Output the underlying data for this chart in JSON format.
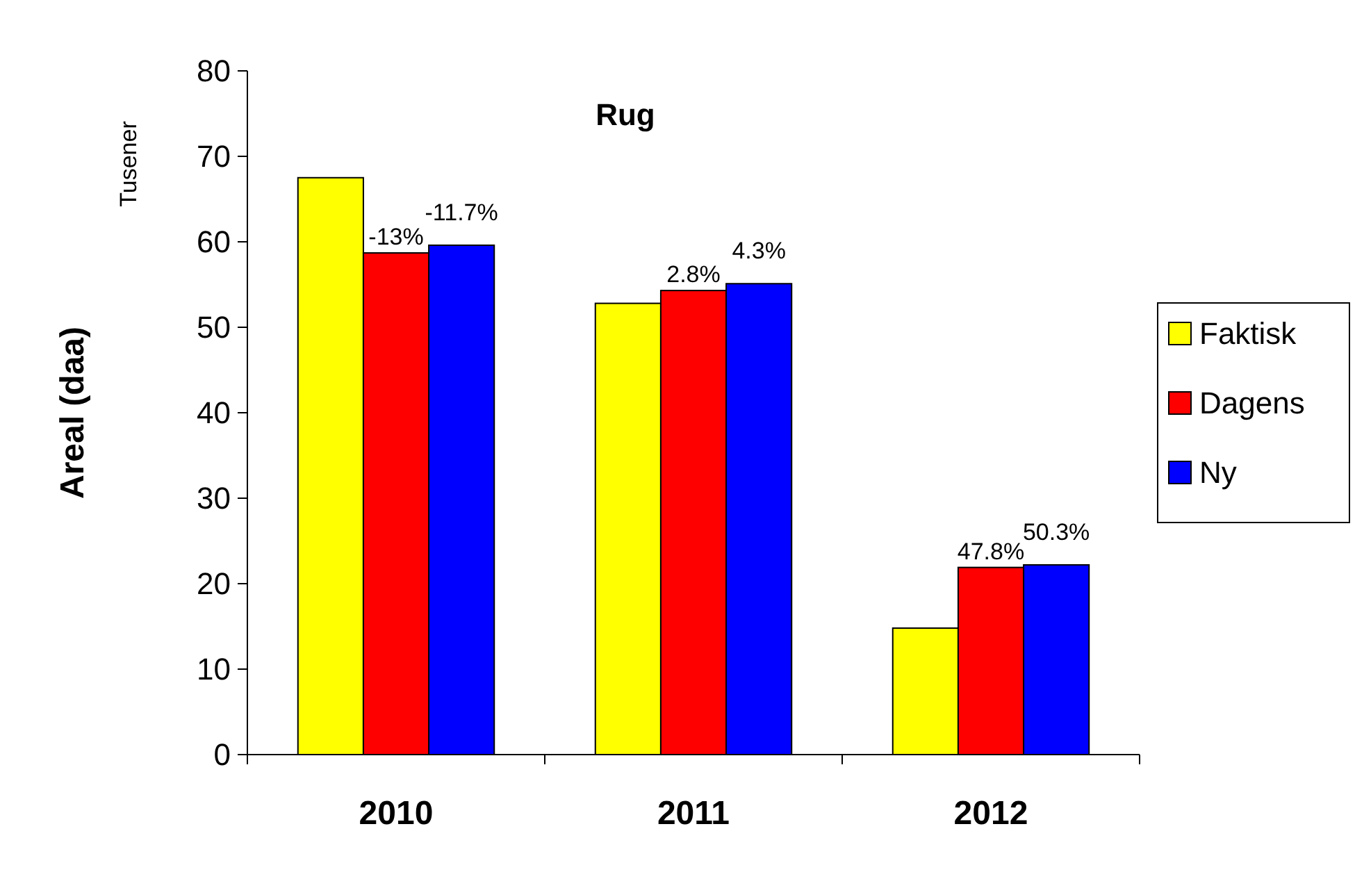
{
  "chart_data": {
    "type": "bar",
    "title": "Rug",
    "ylabel": "Areal (daa)",
    "annotations": [
      "Tusener",
      "-13%",
      "-11.7%",
      "2.8%",
      "4.3%",
      "47.8%",
      "50.3%"
    ],
    "categories": [
      "2010",
      "2011",
      "2012"
    ],
    "series": [
      {
        "name": "Faktisk",
        "color": "#ffff00",
        "values": [
          67.5,
          52.8,
          14.8
        ]
      },
      {
        "name": "Dagens",
        "color": "#ff0000",
        "values": [
          58.7,
          54.3,
          21.9
        ]
      },
      {
        "name": "Ny",
        "color": "#0000ff",
        "values": [
          59.6,
          55.1,
          22.2
        ]
      }
    ],
    "ylim": [
      0,
      80
    ],
    "yticks": [
      0,
      10,
      20,
      30,
      40,
      50,
      60,
      70,
      80
    ],
    "legend": "right",
    "grid": false
  }
}
